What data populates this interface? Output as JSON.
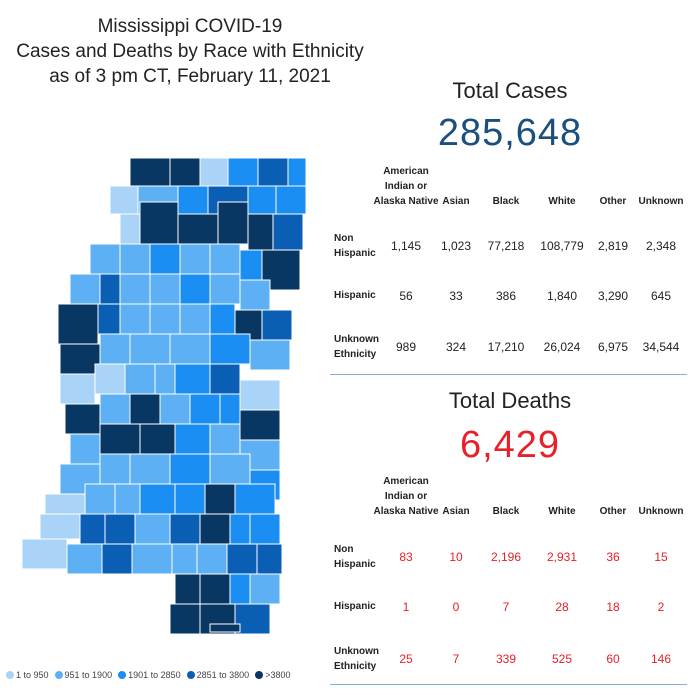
{
  "title": {
    "line1": "Mississippi COVID-19",
    "line2": "Cases and Deaths by Race with Ethnicity",
    "line3": "as of 3 pm CT, February 11, 2021"
  },
  "legend": [
    {
      "label": "1 to 950",
      "color": "#a9d4f7"
    },
    {
      "label": "951 to 1900",
      "color": "#5eb0f5"
    },
    {
      "label": "1901 to 2850",
      "color": "#1a8ef2"
    },
    {
      "label": "2851 to 3800",
      "color": "#0a5fb4"
    },
    {
      "label": ">3800",
      "color": "#093763"
    }
  ],
  "cases": {
    "title": "Total Cases",
    "total": "285,648",
    "color": "#1b4f7d",
    "columns": [
      "American Indian or Alaska Native",
      "Asian",
      "Black",
      "White",
      "Other",
      "Unknown"
    ],
    "column_lines": [
      [
        "American",
        "Indian or",
        "Alaska Native"
      ],
      [
        "Asian"
      ],
      [
        "Black"
      ],
      [
        "White"
      ],
      [
        "Other"
      ],
      [
        "Unknown"
      ]
    ],
    "rows": [
      {
        "label_lines": [
          "Non",
          "Hispanic"
        ],
        "values": [
          "1,145",
          "1,023",
          "77,218",
          "108,779",
          "2,819",
          "2,348"
        ]
      },
      {
        "label_lines": [
          "Hispanic"
        ],
        "values": [
          "56",
          "33",
          "386",
          "1,840",
          "3,290",
          "645"
        ]
      },
      {
        "label_lines": [
          "Unknown",
          "Ethnicity"
        ],
        "values": [
          "989",
          "324",
          "17,210",
          "26,024",
          "6,975",
          "34,544"
        ]
      }
    ]
  },
  "deaths": {
    "title": "Total Deaths",
    "total": "6,429",
    "color": "#e8202a",
    "columns": [
      "American Indian or Alaska Native",
      "Asian",
      "Black",
      "White",
      "Other",
      "Unknown"
    ],
    "column_lines": [
      [
        "American",
        "Indian or",
        "Alaska Native"
      ],
      [
        "Asian"
      ],
      [
        "Black"
      ],
      [
        "White"
      ],
      [
        "Other"
      ],
      [
        "Unknown"
      ]
    ],
    "rows": [
      {
        "label_lines": [
          "Non",
          "Hispanic"
        ],
        "values": [
          "83",
          "10",
          "2,196",
          "2,931",
          "36",
          "15"
        ]
      },
      {
        "label_lines": [
          "Hispanic"
        ],
        "values": [
          "1",
          "0",
          "7",
          "28",
          "18",
          "2"
        ]
      },
      {
        "label_lines": [
          "Unknown",
          "Ethnicity"
        ],
        "values": [
          "25",
          "7",
          "339",
          "525",
          "60",
          "146"
        ]
      }
    ]
  }
}
